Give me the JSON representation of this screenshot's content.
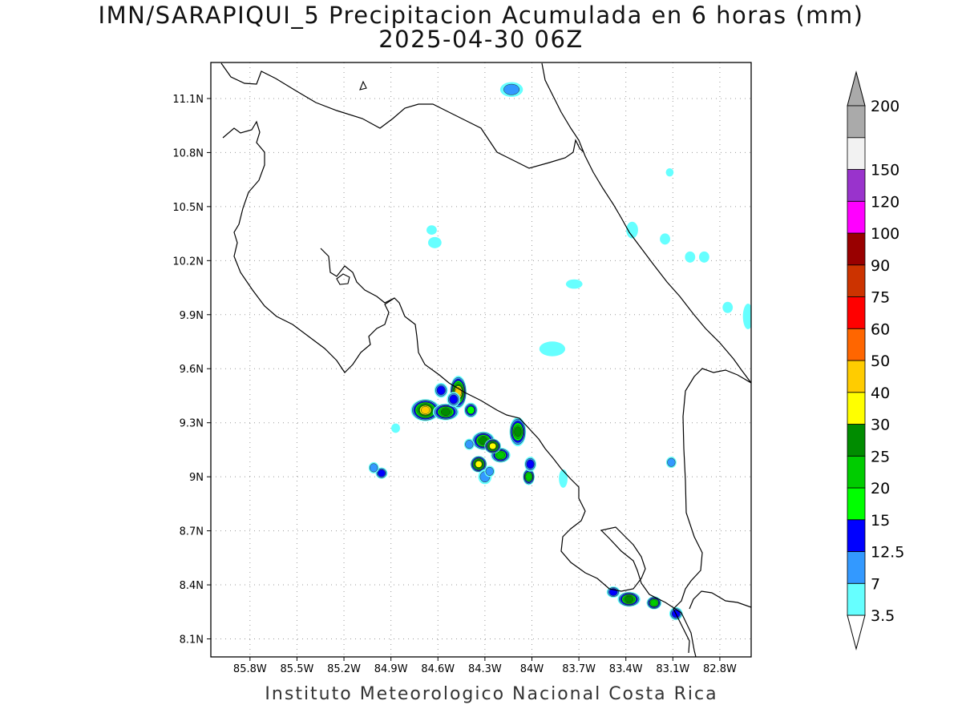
{
  "title": {
    "line1": "IMN/SARAPIQUI_5 Precipitacion Acumulada en 6 horas (mm)",
    "line2": "2025-04-30 06Z"
  },
  "credit": "Instituto Meteorologico Nacional Costa Rica",
  "map": {
    "lon_range": [
      -86.05,
      -82.6
    ],
    "lat_range": [
      8.0,
      11.3
    ],
    "lon_ticks": [
      {
        "value": -85.8,
        "label": "85.8W"
      },
      {
        "value": -85.5,
        "label": "85.5W"
      },
      {
        "value": -85.2,
        "label": "85.2W"
      },
      {
        "value": -84.9,
        "label": "84.9W"
      },
      {
        "value": -84.6,
        "label": "84.6W"
      },
      {
        "value": -84.3,
        "label": "84.3W"
      },
      {
        "value": -84.0,
        "label": "84W"
      },
      {
        "value": -83.7,
        "label": "83.7W"
      },
      {
        "value": -83.4,
        "label": "83.4W"
      },
      {
        "value": -83.1,
        "label": "83.1W"
      },
      {
        "value": -82.8,
        "label": "82.8W"
      }
    ],
    "lat_ticks": [
      {
        "value": 11.1,
        "label": "11.1N"
      },
      {
        "value": 10.8,
        "label": "10.8N"
      },
      {
        "value": 10.5,
        "label": "10.5N"
      },
      {
        "value": 10.2,
        "label": "10.2N"
      },
      {
        "value": 9.9,
        "label": "9.9N"
      },
      {
        "value": 9.6,
        "label": "9.6N"
      },
      {
        "value": 9.3,
        "label": "9.3N"
      },
      {
        "value": 9.0,
        "label": "9N"
      },
      {
        "value": 8.7,
        "label": "8.7N"
      },
      {
        "value": 8.4,
        "label": "8.4N"
      },
      {
        "value": 8.1,
        "label": "8.1N"
      }
    ],
    "grid": "dotted",
    "precip_cells": [
      {
        "lon": -84.68,
        "lat": 9.37,
        "rx": 0.08,
        "ry": 0.05,
        "level": 40
      },
      {
        "lon": -84.55,
        "lat": 9.36,
        "rx": 0.07,
        "ry": 0.035,
        "level": 25
      },
      {
        "lon": -84.47,
        "lat": 9.47,
        "rx": 0.04,
        "ry": 0.08,
        "level": 40
      },
      {
        "lon": -84.5,
        "lat": 9.43,
        "rx": 0.03,
        "ry": 0.03,
        "level": 12.5
      },
      {
        "lon": -84.39,
        "lat": 9.37,
        "rx": 0.03,
        "ry": 0.03,
        "level": 15
      },
      {
        "lon": -84.58,
        "lat": 9.48,
        "rx": 0.03,
        "ry": 0.03,
        "level": 12.5
      },
      {
        "lon": -84.31,
        "lat": 9.2,
        "rx": 0.06,
        "ry": 0.04,
        "level": 25
      },
      {
        "lon": -84.2,
        "lat": 9.12,
        "rx": 0.05,
        "ry": 0.03,
        "level": 20
      },
      {
        "lon": -84.25,
        "lat": 9.17,
        "rx": 0.04,
        "ry": 0.03,
        "level": 30
      },
      {
        "lon": -84.09,
        "lat": 9.25,
        "rx": 0.04,
        "ry": 0.07,
        "level": 25
      },
      {
        "lon": -84.34,
        "lat": 9.07,
        "rx": 0.04,
        "ry": 0.035,
        "level": 30
      },
      {
        "lon": -84.3,
        "lat": 9.0,
        "rx": 0.03,
        "ry": 0.03,
        "level": 7
      },
      {
        "lon": -84.02,
        "lat": 9.0,
        "rx": 0.025,
        "ry": 0.035,
        "level": 20
      },
      {
        "lon": -84.01,
        "lat": 9.07,
        "rx": 0.025,
        "ry": 0.03,
        "level": 12.5
      },
      {
        "lon": -84.4,
        "lat": 9.18,
        "rx": 0.02,
        "ry": 0.02,
        "level": 7
      },
      {
        "lon": -84.27,
        "lat": 9.03,
        "rx": 0.02,
        "ry": 0.02,
        "level": 7
      },
      {
        "lon": -84.96,
        "lat": 9.02,
        "rx": 0.025,
        "ry": 0.02,
        "level": 12.5
      },
      {
        "lon": -85.01,
        "lat": 9.05,
        "rx": 0.02,
        "ry": 0.02,
        "level": 7
      },
      {
        "lon": -83.38,
        "lat": 8.32,
        "rx": 0.06,
        "ry": 0.03,
        "level": 25
      },
      {
        "lon": -83.22,
        "lat": 8.3,
        "rx": 0.035,
        "ry": 0.025,
        "level": 20
      },
      {
        "lon": -83.08,
        "lat": 8.24,
        "rx": 0.03,
        "ry": 0.025,
        "level": 12.5
      },
      {
        "lon": -83.48,
        "lat": 8.36,
        "rx": 0.03,
        "ry": 0.02,
        "level": 12.5
      },
      {
        "lon": -84.13,
        "lat": 11.15,
        "rx": 0.06,
        "ry": 0.03,
        "level": 7
      },
      {
        "lon": -83.36,
        "lat": 10.37,
        "rx": 0.025,
        "ry": 0.035,
        "level": 3.5
      },
      {
        "lon": -83.15,
        "lat": 10.32,
        "rx": 0.02,
        "ry": 0.02,
        "level": 3.5
      },
      {
        "lon": -84.62,
        "lat": 10.3,
        "rx": 0.03,
        "ry": 0.02,
        "level": 3.5
      },
      {
        "lon": -84.64,
        "lat": 10.37,
        "rx": 0.02,
        "ry": 0.015,
        "level": 3.5
      },
      {
        "lon": -83.73,
        "lat": 10.07,
        "rx": 0.04,
        "ry": 0.015,
        "level": 3.5
      },
      {
        "lon": -83.87,
        "lat": 9.71,
        "rx": 0.07,
        "ry": 0.03,
        "level": 3.5
      },
      {
        "lon": -83.11,
        "lat": 9.08,
        "rx": 0.02,
        "ry": 0.02,
        "level": 7
      },
      {
        "lon": -83.8,
        "lat": 8.99,
        "rx": 0.015,
        "ry": 0.04,
        "level": 3.5
      },
      {
        "lon": -82.99,
        "lat": 10.22,
        "rx": 0.02,
        "ry": 0.02,
        "level": 3.5
      },
      {
        "lon": -82.9,
        "lat": 10.22,
        "rx": 0.02,
        "ry": 0.02,
        "level": 3.5
      },
      {
        "lon": -82.75,
        "lat": 9.94,
        "rx": 0.02,
        "ry": 0.02,
        "level": 3.5
      },
      {
        "lon": -82.62,
        "lat": 9.89,
        "rx": 0.02,
        "ry": 0.06,
        "level": 3.5
      },
      {
        "lon": -84.87,
        "lat": 9.27,
        "rx": 0.015,
        "ry": 0.015,
        "level": 3.5
      },
      {
        "lon": -83.12,
        "lat": 10.69,
        "rx": 0.012,
        "ry": 0.012,
        "level": 3.5
      }
    ]
  },
  "colorbar": {
    "levels": [
      {
        "label": "3.5",
        "color": "#66ffff"
      },
      {
        "label": "7",
        "color": "#3399ff"
      },
      {
        "label": "12.5",
        "color": "#0000ff"
      },
      {
        "label": "15",
        "color": "#00ff00"
      },
      {
        "label": "20",
        "color": "#00cc00"
      },
      {
        "label": "25",
        "color": "#008c00"
      },
      {
        "label": "30",
        "color": "#ffff00"
      },
      {
        "label": "40",
        "color": "#ffcc00"
      },
      {
        "label": "50",
        "color": "#ff6600"
      },
      {
        "label": "60",
        "color": "#ff0000"
      },
      {
        "label": "75",
        "color": "#cc3300"
      },
      {
        "label": "90",
        "color": "#990000"
      },
      {
        "label": "100",
        "color": "#ff00ff"
      },
      {
        "label": "120",
        "color": "#9933cc"
      },
      {
        "label": "150",
        "color": "#f2f2f2"
      },
      {
        "label": "200",
        "color": "#aaaaaa"
      }
    ],
    "lower_extend_color": "#ffffff",
    "upper_extend_color": "#aaaaaa"
  }
}
